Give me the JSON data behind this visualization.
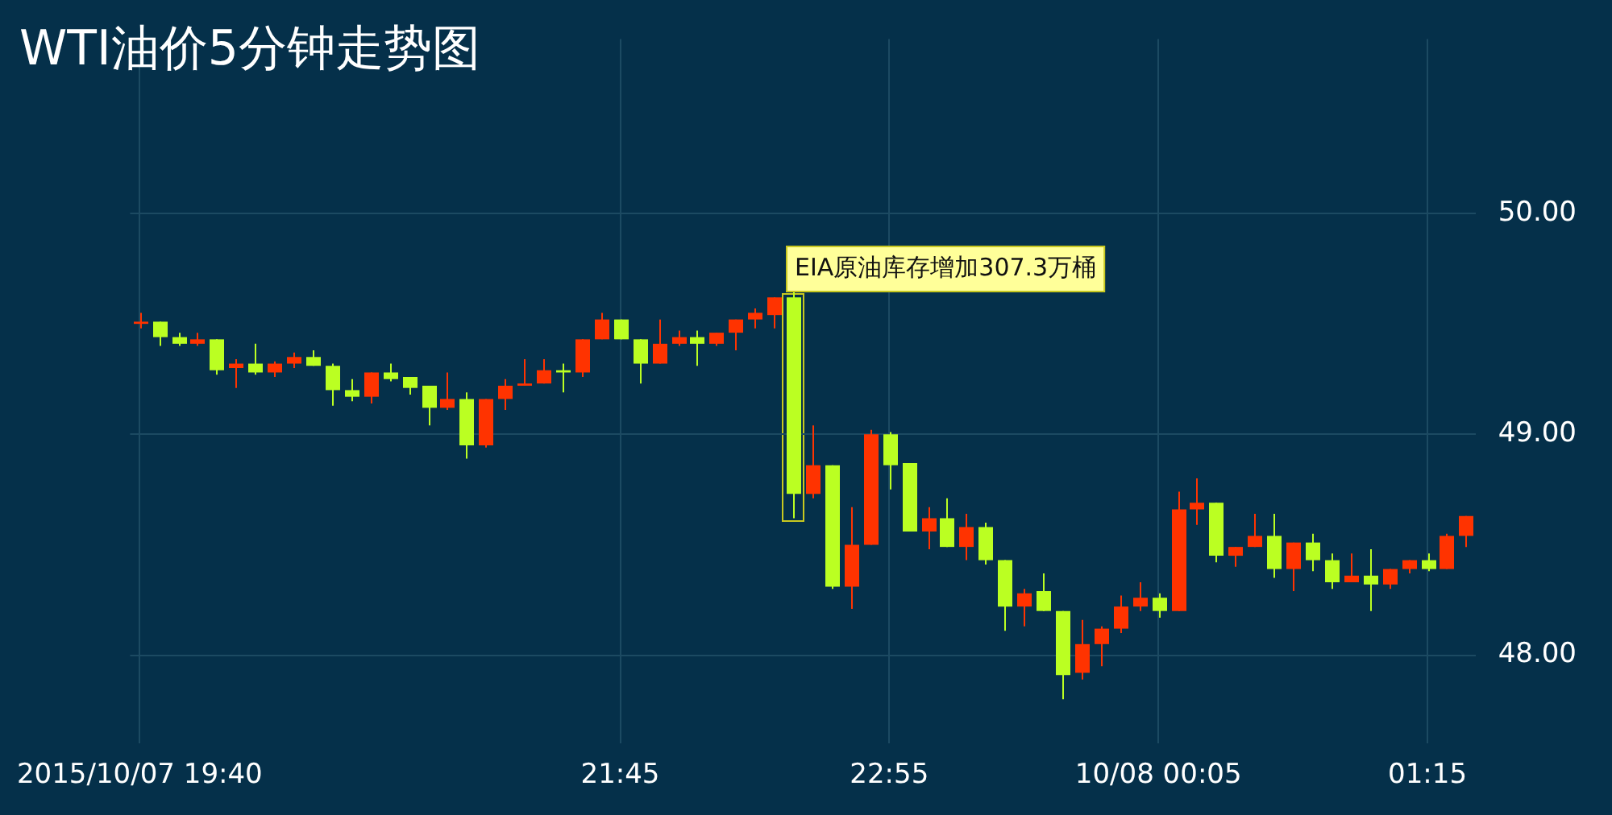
{
  "chart_data": {
    "type": "candlestick",
    "title": "WTI油价5分钟走势图",
    "categories": [
      "2015/10/07 19:40",
      null,
      null,
      null,
      null,
      null,
      null,
      null,
      null,
      null,
      null,
      null,
      null,
      null,
      null,
      null,
      null,
      null,
      null,
      null,
      null,
      null,
      null,
      null,
      null,
      "21:45",
      null,
      null,
      null,
      null,
      null,
      null,
      null,
      null,
      null,
      null,
      null,
      null,
      null,
      "22:55",
      null,
      null,
      null,
      null,
      null,
      null,
      null,
      null,
      null,
      null,
      null,
      null,
      null,
      "10/08 00:05",
      null,
      null,
      null,
      null,
      null,
      null,
      null,
      null,
      null,
      null,
      null,
      null,
      null,
      "01:15",
      null,
      null
    ],
    "ohlc": [
      [
        49.5,
        49.55,
        49.48,
        49.51
      ],
      [
        49.51,
        49.51,
        49.4,
        49.44
      ],
      [
        49.44,
        49.46,
        49.4,
        49.41
      ],
      [
        49.41,
        49.46,
        49.4,
        49.43
      ],
      [
        49.43,
        49.43,
        49.27,
        49.29
      ],
      [
        49.3,
        49.34,
        49.21,
        49.32
      ],
      [
        49.32,
        49.41,
        49.27,
        49.28
      ],
      [
        49.28,
        49.33,
        49.26,
        49.32
      ],
      [
        49.32,
        49.37,
        49.3,
        49.35
      ],
      [
        49.35,
        49.38,
        49.31,
        49.31
      ],
      [
        49.31,
        49.32,
        49.13,
        49.2
      ],
      [
        49.2,
        49.25,
        49.15,
        49.17
      ],
      [
        49.17,
        49.28,
        49.14,
        49.28
      ],
      [
        49.28,
        49.32,
        49.24,
        49.25
      ],
      [
        49.26,
        49.26,
        49.18,
        49.21
      ],
      [
        49.22,
        49.22,
        49.04,
        49.12
      ],
      [
        49.12,
        49.28,
        49.11,
        49.16
      ],
      [
        49.16,
        49.19,
        48.89,
        48.95
      ],
      [
        48.95,
        49.16,
        48.94,
        49.16
      ],
      [
        49.16,
        49.25,
        49.11,
        49.22
      ],
      [
        49.22,
        49.34,
        49.22,
        49.23
      ],
      [
        49.23,
        49.34,
        49.23,
        49.29
      ],
      [
        49.29,
        49.32,
        49.19,
        49.28
      ],
      [
        49.28,
        49.43,
        49.26,
        49.43
      ],
      [
        49.43,
        49.55,
        49.43,
        49.52
      ],
      [
        49.52,
        49.52,
        49.43,
        49.43
      ],
      [
        49.43,
        49.43,
        49.23,
        49.32
      ],
      [
        49.32,
        49.52,
        49.32,
        49.41
      ],
      [
        49.41,
        49.47,
        49.4,
        49.44
      ],
      [
        49.44,
        49.47,
        49.31,
        49.41
      ],
      [
        49.41,
        49.46,
        49.4,
        49.46
      ],
      [
        49.46,
        49.52,
        49.38,
        49.52
      ],
      [
        49.52,
        49.57,
        49.48,
        49.55
      ],
      [
        49.54,
        49.62,
        49.48,
        49.62
      ],
      [
        49.62,
        49.65,
        48.62,
        48.73
      ],
      [
        48.73,
        49.04,
        48.71,
        48.86
      ],
      [
        48.86,
        48.86,
        48.3,
        48.31
      ],
      [
        48.31,
        48.67,
        48.21,
        48.5
      ],
      [
        48.5,
        49.02,
        48.5,
        49.0
      ],
      [
        49.0,
        49.01,
        48.75,
        48.86
      ],
      [
        48.87,
        48.87,
        48.56,
        48.56
      ],
      [
        48.56,
        48.67,
        48.48,
        48.62
      ],
      [
        48.62,
        48.71,
        48.49,
        48.49
      ],
      [
        48.49,
        48.64,
        48.43,
        48.58
      ],
      [
        48.58,
        48.6,
        48.41,
        48.43
      ],
      [
        48.43,
        48.43,
        48.11,
        48.22
      ],
      [
        48.22,
        48.3,
        48.13,
        48.28
      ],
      [
        48.29,
        48.37,
        48.2,
        48.2
      ],
      [
        48.2,
        48.2,
        47.8,
        47.91
      ],
      [
        47.92,
        48.16,
        47.89,
        48.05
      ],
      [
        48.05,
        48.13,
        47.95,
        48.12
      ],
      [
        48.12,
        48.27,
        48.1,
        48.22
      ],
      [
        48.22,
        48.33,
        48.2,
        48.26
      ],
      [
        48.26,
        48.28,
        48.17,
        48.2
      ],
      [
        48.2,
        48.74,
        48.2,
        48.66
      ],
      [
        48.66,
        48.8,
        48.59,
        48.69
      ],
      [
        48.69,
        48.69,
        48.42,
        48.45
      ],
      [
        48.45,
        48.49,
        48.4,
        48.49
      ],
      [
        48.49,
        48.64,
        48.49,
        48.54
      ],
      [
        48.54,
        48.64,
        48.35,
        48.39
      ],
      [
        48.39,
        48.51,
        48.29,
        48.51
      ],
      [
        48.51,
        48.55,
        48.38,
        48.43
      ],
      [
        48.43,
        48.46,
        48.3,
        48.33
      ],
      [
        48.33,
        48.46,
        48.33,
        48.36
      ],
      [
        48.36,
        48.48,
        48.2,
        48.32
      ],
      [
        48.32,
        48.39,
        48.3,
        48.39
      ],
      [
        48.39,
        48.43,
        48.37,
        48.43
      ],
      [
        48.43,
        48.46,
        48.38,
        48.39
      ],
      [
        48.39,
        48.55,
        48.39,
        48.54
      ],
      [
        48.54,
        48.63,
        48.49,
        48.63
      ]
    ],
    "colors": [
      "#ff3300",
      "#bbff22",
      "#bbff22",
      "#ff3300",
      "#bbff22",
      "#ff3300",
      "#bbff22",
      "#ff3300",
      "#ff3300",
      "#bbff22",
      "#bbff22",
      "#bbff22",
      "#ff3300",
      "#bbff22",
      "#bbff22",
      "#bbff22",
      "#ff3300",
      "#bbff22",
      "#ff3300",
      "#ff3300",
      "#ff3300",
      "#ff3300",
      "#bbff22",
      "#ff3300",
      "#ff3300",
      "#bbff22",
      "#bbff22",
      "#ff3300",
      "#ff3300",
      "#bbff22",
      "#ff3300",
      "#ff3300",
      "#ff3300",
      "#ff3300",
      "#bbff22",
      "#ff3300",
      "#bbff22",
      "#ff3300",
      "#ff3300",
      "#bbff22",
      "#bbff22",
      "#ff3300",
      "#bbff22",
      "#ff3300",
      "#bbff22",
      "#bbff22",
      "#ff3300",
      "#bbff22",
      "#bbff22",
      "#ff3300",
      "#ff3300",
      "#ff3300",
      "#ff3300",
      "#bbff22",
      "#ff3300",
      "#ff3300",
      "#bbff22",
      "#ff3300",
      "#ff3300",
      "#bbff22",
      "#ff3300",
      "#bbff22",
      "#bbff22",
      "#ff3300",
      "#bbff22",
      "#ff3300",
      "#ff3300",
      "#bbff22",
      "#ff3300",
      "#ff3300"
    ],
    "ylim": [
      47.6,
      50.79
    ],
    "yticks": [
      {
        "value": 48,
        "label": "48.00"
      },
      {
        "value": 49,
        "label": "49.00"
      },
      {
        "value": 50,
        "label": "50.00"
      }
    ],
    "grid": true,
    "annotations": [
      "EIA原油库存增加307.3万桶"
    ]
  }
}
